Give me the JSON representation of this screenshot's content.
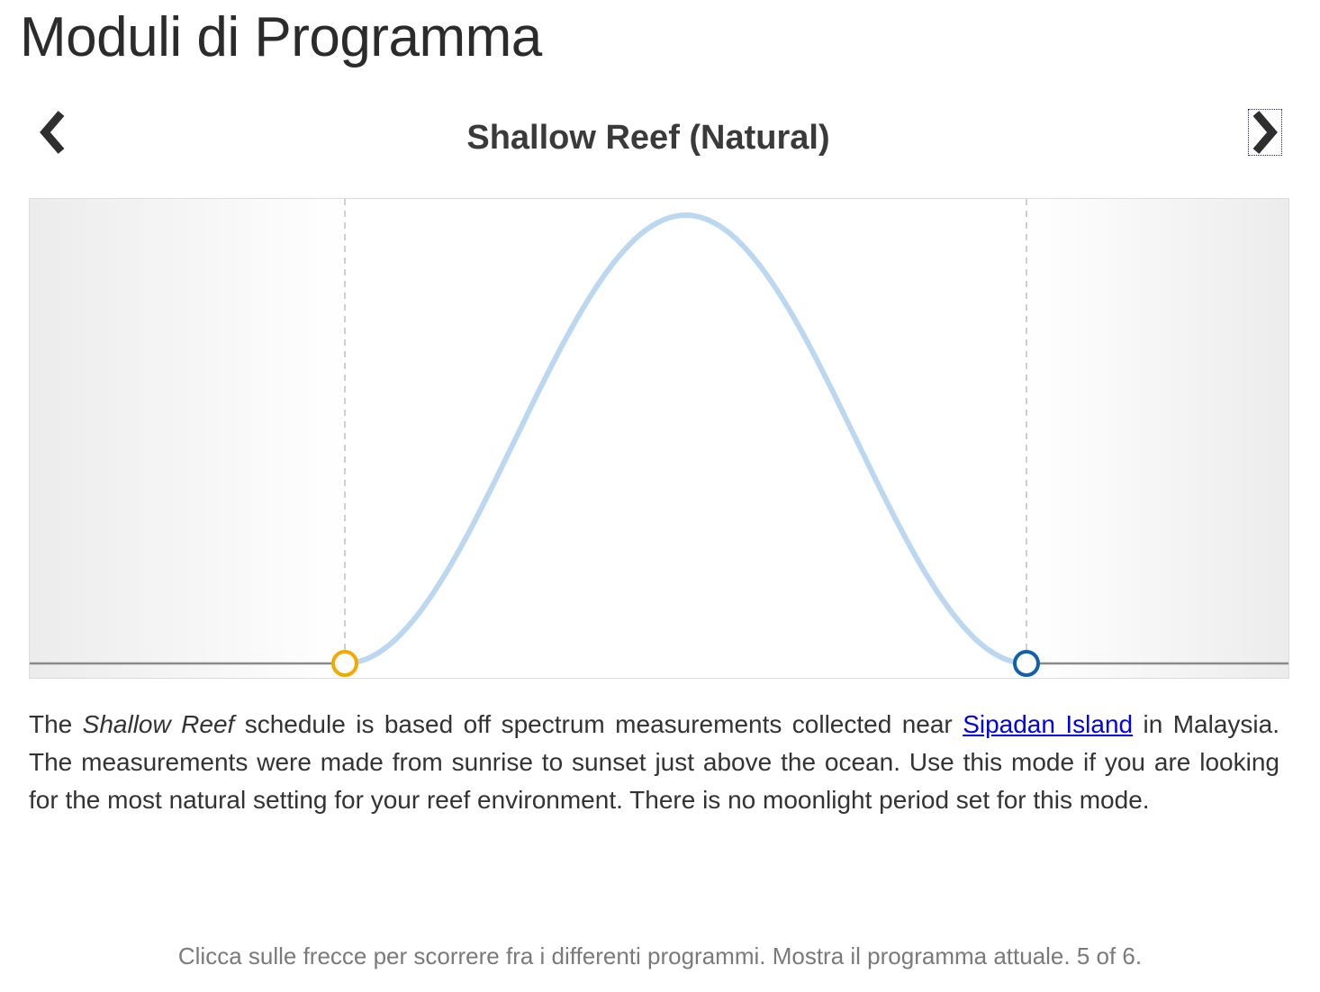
{
  "page": {
    "title": "Moduli di Programma"
  },
  "program": {
    "title": "Shallow Reef (Natural)",
    "prev_icon": "chevron-left-icon",
    "next_icon": "chevron-right-icon"
  },
  "chart_data": {
    "type": "area",
    "x": [
      0,
      0.5,
      1
    ],
    "y": [
      0,
      1,
      0
    ],
    "shape": "bell curve between sunrise and sunset markers",
    "sunrise_marker_color": "#f2a900",
    "sunset_marker_color": "#1060b0",
    "curve_color": "#bcd8f0",
    "baseline_color": "#8a8a8a",
    "grid": false
  },
  "description": {
    "part1": "The ",
    "emphasis": "Shallow Reef",
    "part2": " schedule is based off spectrum measurements collected near ",
    "link_text": "Sipadan Island",
    "part3": " in Malaysia. The measurements were made from sunrise to sunset just above the ocean. Use this mode if you are looking for the most natural setting for your reef environment. There is no moonlight period set for this mode."
  },
  "footer": {
    "note": "Clicca sulle frecce per scorrere fra i differenti programmi. Mostra il programma attuale. 5 of 6."
  }
}
